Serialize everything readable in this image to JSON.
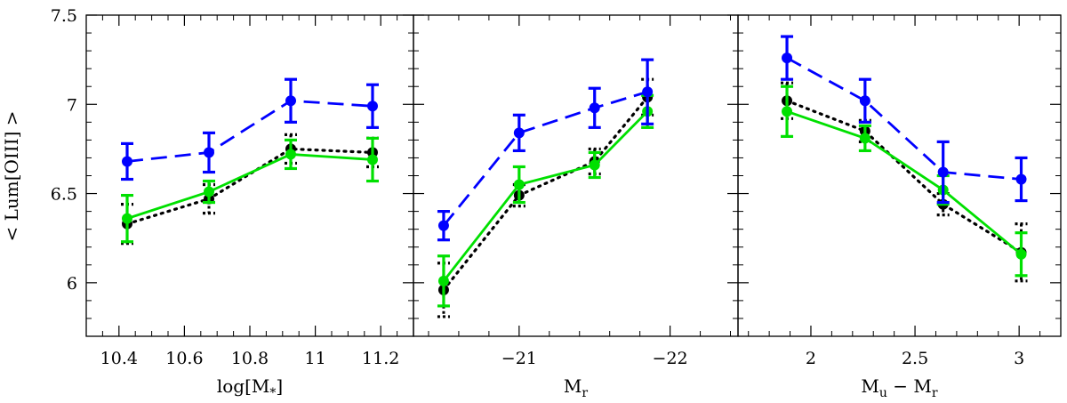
{
  "figure": {
    "ylabel": "< Lum[OIII] >"
  },
  "colors": {
    "blue": "#0000ff",
    "green": "#00e000",
    "black": "#000000"
  },
  "chart_data": [
    {
      "type": "line",
      "xlabel": "log[M*]",
      "xlabel_main": "log[M",
      "xlabel_sub": "*",
      "xlabel_tail": "]",
      "xlim": [
        10.3,
        11.3
      ],
      "ylim": [
        5.7,
        7.5
      ],
      "xticks": [
        10.4,
        10.6,
        10.8,
        11,
        11.2
      ],
      "xtick_labels": [
        "10.4",
        "10.6",
        "10.8",
        "11",
        "11.2"
      ],
      "yticks": [
        6,
        6.5,
        7,
        7.5
      ],
      "ytick_labels": [
        "6",
        "6.5",
        "7",
        "7.5"
      ],
      "grid": false,
      "series": [
        {
          "style": "dashed",
          "color": "blue",
          "x": [
            10.425,
            10.675,
            10.925,
            11.175
          ],
          "y": [
            6.68,
            6.73,
            7.02,
            6.99
          ],
          "yerr": [
            0.1,
            0.11,
            0.12,
            0.12
          ]
        },
        {
          "style": "dotted",
          "color": "black",
          "x": [
            10.425,
            10.675,
            10.925,
            11.175
          ],
          "y": [
            6.33,
            6.47,
            6.75,
            6.73
          ],
          "yerr": [
            0.11,
            0.08,
            0.08,
            0.08
          ]
        },
        {
          "style": "solid",
          "color": "green",
          "x": [
            10.425,
            10.675,
            10.925,
            11.175
          ],
          "y": [
            6.36,
            6.51,
            6.72,
            6.69
          ],
          "yerr": [
            0.13,
            0.06,
            0.08,
            0.12
          ]
        }
      ]
    },
    {
      "type": "line",
      "xlabel": "Mr",
      "xlabel_main": "M",
      "xlabel_sub": "r",
      "xlabel_tail": "",
      "xlim": [
        -20.3,
        -22.45
      ],
      "ylim": [
        5.7,
        7.5
      ],
      "xticks": [
        -21,
        -22
      ],
      "xtick_labels": [
        "−21",
        "−22"
      ],
      "yticks": [
        6,
        6.5,
        7,
        7.5
      ],
      "ytick_labels": [],
      "grid": false,
      "series": [
        {
          "style": "dashed",
          "color": "blue",
          "x": [
            -20.5,
            -21.0,
            -21.5,
            -21.85
          ],
          "y": [
            6.32,
            6.84,
            6.98,
            7.07
          ],
          "yerr": [
            0.08,
            0.1,
            0.11,
            0.18
          ]
        },
        {
          "style": "dotted",
          "color": "black",
          "x": [
            -20.5,
            -21.0,
            -21.5,
            -21.85
          ],
          "y": [
            5.96,
            6.49,
            6.68,
            7.04
          ],
          "yerr": [
            0.15,
            0.06,
            0.07,
            0.1
          ]
        },
        {
          "style": "solid",
          "color": "green",
          "x": [
            -20.5,
            -21.0,
            -21.5,
            -21.85
          ],
          "y": [
            6.01,
            6.55,
            6.66,
            6.96
          ],
          "yerr": [
            0.14,
            0.1,
            0.07,
            0.09
          ]
        }
      ]
    },
    {
      "type": "line",
      "xlabel": "Mu − Mr",
      "xlabel_main": "M",
      "xlabel_sub": "u",
      "xlabel_mid": " − M",
      "xlabel_sub2": "r",
      "xlim": [
        1.65,
        3.2
      ],
      "ylim": [
        5.7,
        7.5
      ],
      "xticks": [
        2,
        2.5,
        3
      ],
      "xtick_labels": [
        "2",
        "2.5",
        "3"
      ],
      "yticks": [
        6,
        6.5,
        7,
        7.5
      ],
      "ytick_labels": [],
      "grid": false,
      "series": [
        {
          "style": "dashed",
          "color": "blue",
          "x": [
            1.885,
            2.26,
            2.635,
            3.01
          ],
          "y": [
            7.26,
            7.02,
            6.62,
            6.58
          ],
          "yerr": [
            0.12,
            0.12,
            0.17,
            0.12
          ]
        },
        {
          "style": "dotted",
          "color": "black",
          "x": [
            1.885,
            2.26,
            2.635,
            3.01
          ],
          "y": [
            7.02,
            6.85,
            6.44,
            6.17
          ],
          "yerr": [
            0.1,
            0.06,
            0.06,
            0.16
          ]
        },
        {
          "style": "solid",
          "color": "green",
          "x": [
            1.885,
            2.26,
            2.635,
            3.01
          ],
          "y": [
            6.96,
            6.81,
            6.52,
            6.16
          ],
          "yerr": [
            0.14,
            0.07,
            0.08,
            0.12
          ]
        }
      ]
    }
  ]
}
